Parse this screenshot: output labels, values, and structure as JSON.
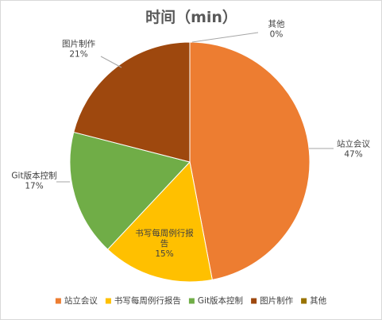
{
  "chart_data": {
    "type": "pie",
    "title": "时间（min）",
    "slices": [
      {
        "label": "站立会议",
        "label_lines": [
          "站立会议"
        ],
        "percent": 47,
        "percent_text": "47%",
        "color": "#ED7D31"
      },
      {
        "label": "书写每周例行报告",
        "label_lines": [
          "书写每周例行报",
          "告"
        ],
        "percent": 15,
        "percent_text": "15%",
        "color": "#FFC000"
      },
      {
        "label": "Git版本控制",
        "label_lines": [
          "Git版本控制"
        ],
        "percent": 17,
        "percent_text": "17%",
        "color": "#70AD47"
      },
      {
        "label": "图片制作",
        "label_lines": [
          "图片制作"
        ],
        "percent": 21,
        "percent_text": "21%",
        "color": "#9E480E"
      },
      {
        "label": "其他",
        "label_lines": [
          "其他"
        ],
        "percent": 0,
        "percent_text": "0%",
        "color": "#997300"
      }
    ],
    "legend": {
      "position": "bottom",
      "items": [
        "站立会议",
        "书写每周例行报告",
        "Git版本控制",
        "图片制作",
        "其他"
      ]
    }
  }
}
